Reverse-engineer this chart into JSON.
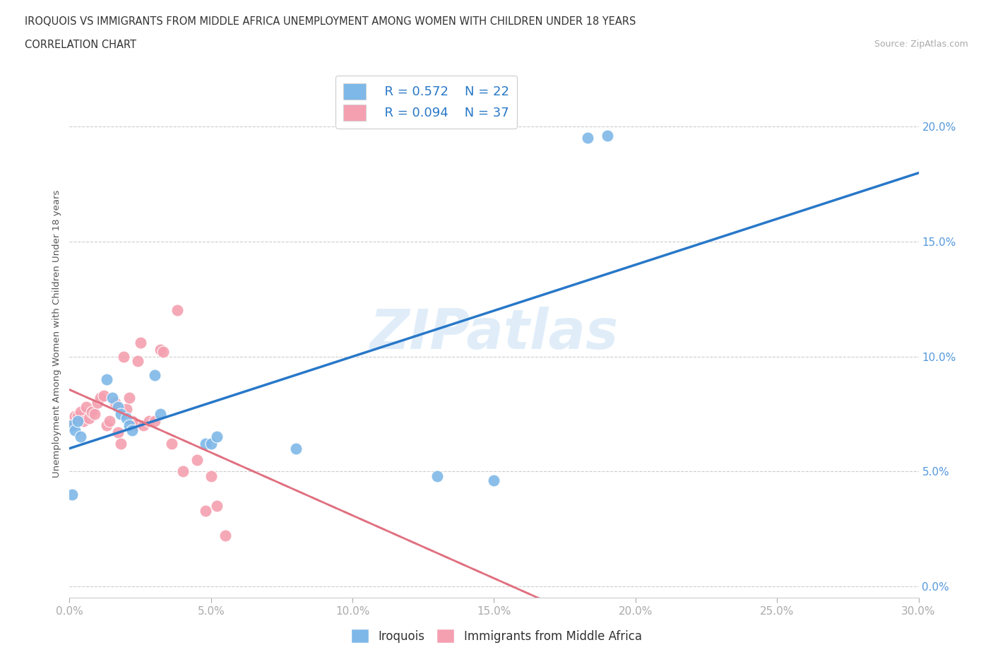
{
  "title_line1": "IROQUOIS VS IMMIGRANTS FROM MIDDLE AFRICA UNEMPLOYMENT AMONG WOMEN WITH CHILDREN UNDER 18 YEARS",
  "title_line2": "CORRELATION CHART",
  "source": "Source: ZipAtlas.com",
  "ylabel": "Unemployment Among Women with Children Under 18 years",
  "xlim": [
    0.0,
    0.3
  ],
  "ylim": [
    -0.005,
    0.225
  ],
  "xticks": [
    0.0,
    0.05,
    0.1,
    0.15,
    0.2,
    0.25,
    0.3
  ],
  "yticks": [
    0.0,
    0.05,
    0.1,
    0.15,
    0.2
  ],
  "legend_r1": "R = 0.572",
  "legend_n1": "N = 22",
  "legend_r2": "R = 0.094",
  "legend_n2": "N = 37",
  "color_iroquois": "#7EB8E8",
  "color_immigrants": "#F4A0B0",
  "color_iroquois_line": "#2878C8",
  "color_immigrants_line": "#E07080",
  "watermark": "ZIPatlas",
  "iroquois_x": [
    0.001,
    0.001,
    0.002,
    0.003,
    0.004,
    0.013,
    0.015,
    0.017,
    0.018,
    0.02,
    0.021,
    0.022,
    0.03,
    0.032,
    0.048,
    0.05,
    0.052,
    0.08,
    0.13,
    0.15,
    0.183,
    0.19
  ],
  "iroquois_y": [
    0.07,
    0.04,
    0.068,
    0.072,
    0.065,
    0.09,
    0.082,
    0.078,
    0.075,
    0.073,
    0.07,
    0.068,
    0.092,
    0.075,
    0.062,
    0.062,
    0.065,
    0.06,
    0.048,
    0.046,
    0.195,
    0.196
  ],
  "immigrants_x": [
    0.001,
    0.002,
    0.003,
    0.004,
    0.005,
    0.006,
    0.007,
    0.008,
    0.009,
    0.01,
    0.011,
    0.012,
    0.013,
    0.014,
    0.016,
    0.017,
    0.018,
    0.019,
    0.02,
    0.021,
    0.022,
    0.023,
    0.024,
    0.025,
    0.026,
    0.028,
    0.03,
    0.032,
    0.033,
    0.036,
    0.038,
    0.04,
    0.045,
    0.048,
    0.05,
    0.052,
    0.055
  ],
  "immigrants_y": [
    0.072,
    0.074,
    0.074,
    0.076,
    0.072,
    0.078,
    0.073,
    0.076,
    0.075,
    0.08,
    0.082,
    0.083,
    0.07,
    0.072,
    0.08,
    0.067,
    0.062,
    0.1,
    0.077,
    0.082,
    0.072,
    0.07,
    0.098,
    0.106,
    0.07,
    0.072,
    0.072,
    0.103,
    0.102,
    0.062,
    0.12,
    0.05,
    0.055,
    0.033,
    0.048,
    0.035,
    0.022
  ]
}
